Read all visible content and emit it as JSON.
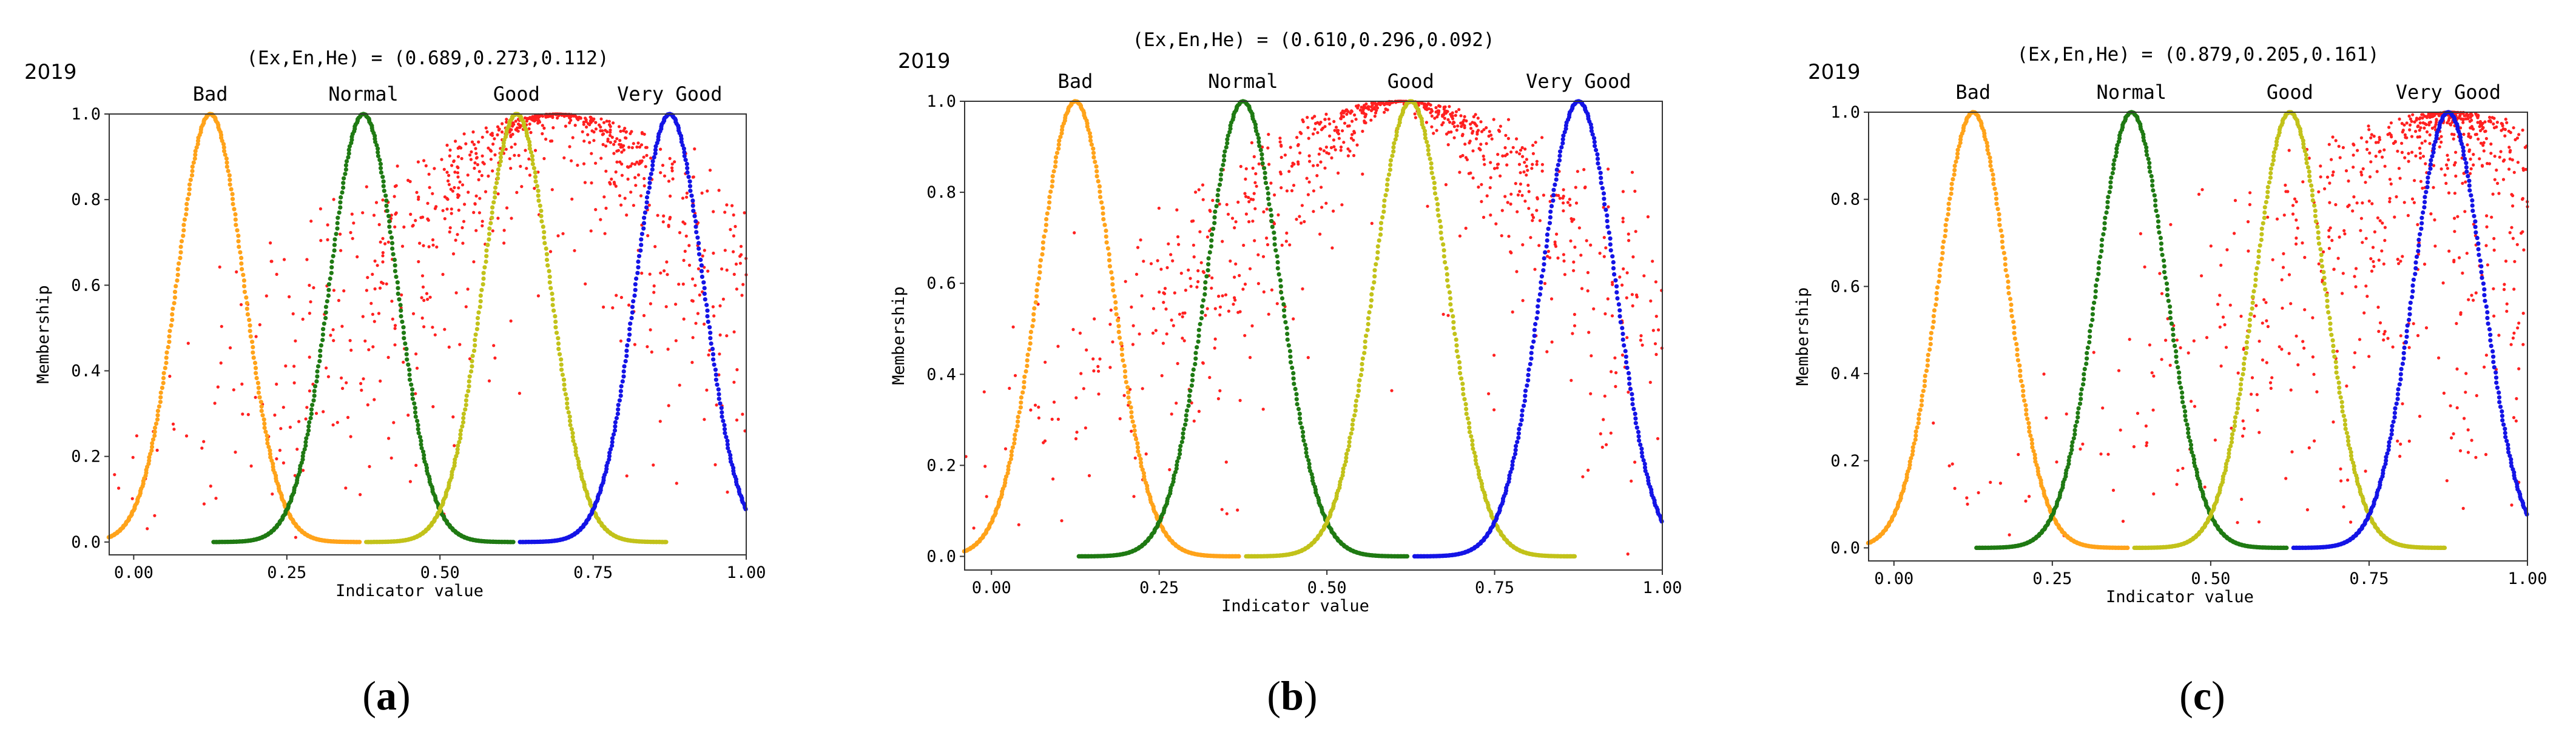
{
  "figure_labels": [
    "a",
    "b",
    "c"
  ],
  "colors": {
    "bad": "#ffa31a",
    "normal": "#1f7a13",
    "good": "#c2c21a",
    "very_good": "#1414e6",
    "drops": "#ff2020",
    "axis": "#333333"
  },
  "chart_data": [
    {
      "type": "scatter",
      "label": "a",
      "year": "2019",
      "title": "(Ex,En,He) = (0.689,0.273,0.112)",
      "xlabel": "Indicator value",
      "ylabel": "Membership",
      "xlim": [
        -0.04,
        1.0
      ],
      "ylim": [
        -0.03,
        1.0
      ],
      "xticks": [
        "0.00",
        "0.25",
        "0.50",
        "0.75",
        "1.00"
      ],
      "yticks": [
        "0.0",
        "0.2",
        "0.4",
        "0.6",
        "0.8",
        "1.0"
      ],
      "categories": [
        {
          "name": "Bad",
          "center": 0.125,
          "sigma": 0.055
        },
        {
          "name": "Normal",
          "center": 0.375,
          "sigma": 0.055
        },
        {
          "name": "Good",
          "center": 0.625,
          "sigma": 0.055
        },
        {
          "name": "Very Good",
          "center": 0.875,
          "sigma": 0.055
        }
      ],
      "cloud": {
        "Ex": 0.689,
        "En": 0.273,
        "He": 0.112
      }
    },
    {
      "type": "scatter",
      "label": "b",
      "year": "2019",
      "title": "(Ex,En,He) = (0.610,0.296,0.092)",
      "xlabel": "Indicator value",
      "ylabel": "Membership",
      "xlim": [
        -0.04,
        1.0
      ],
      "ylim": [
        -0.03,
        1.0
      ],
      "xticks": [
        "0.00",
        "0.25",
        "0.50",
        "0.75",
        "1.00"
      ],
      "yticks": [
        "0.0",
        "0.2",
        "0.4",
        "0.6",
        "0.8",
        "1.0"
      ],
      "categories": [
        {
          "name": "Bad",
          "center": 0.125,
          "sigma": 0.055
        },
        {
          "name": "Normal",
          "center": 0.375,
          "sigma": 0.055
        },
        {
          "name": "Good",
          "center": 0.625,
          "sigma": 0.055
        },
        {
          "name": "Very Good",
          "center": 0.875,
          "sigma": 0.055
        }
      ],
      "cloud": {
        "Ex": 0.61,
        "En": 0.296,
        "He": 0.092
      }
    },
    {
      "type": "scatter",
      "label": "c",
      "year": "2019",
      "title": "(Ex,En,He) = (0.879,0.205,0.161)",
      "xlabel": "Indicator value",
      "ylabel": "Membership",
      "xlim": [
        -0.04,
        1.0
      ],
      "ylim": [
        -0.03,
        1.0
      ],
      "xticks": [
        "0.00",
        "0.25",
        "0.50",
        "0.75",
        "1.00"
      ],
      "yticks": [
        "0.0",
        "0.2",
        "0.4",
        "0.6",
        "0.8",
        "1.0"
      ],
      "categories": [
        {
          "name": "Bad",
          "center": 0.125,
          "sigma": 0.055
        },
        {
          "name": "Normal",
          "center": 0.375,
          "sigma": 0.055
        },
        {
          "name": "Good",
          "center": 0.625,
          "sigma": 0.055
        },
        {
          "name": "Very Good",
          "center": 0.875,
          "sigma": 0.055
        }
      ],
      "cloud": {
        "Ex": 0.879,
        "En": 0.205,
        "He": 0.161
      }
    }
  ]
}
